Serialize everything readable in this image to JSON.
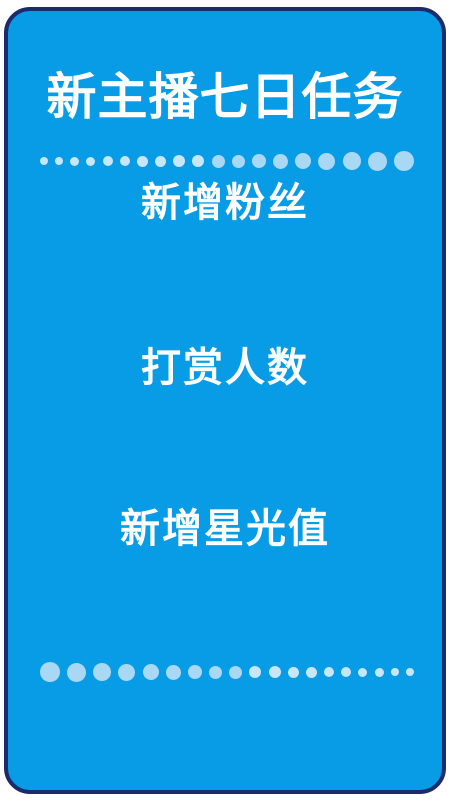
{
  "title": "新主播七日任务",
  "tasks": [
    "新增粉丝",
    "打赏人数",
    "新增星光值"
  ],
  "colors": {
    "background": "#079ce5",
    "border": "#1d2a6b",
    "text": "#ffffff",
    "dot_light": "#c7e6f8",
    "dot_mid": "#a9d8f5"
  }
}
